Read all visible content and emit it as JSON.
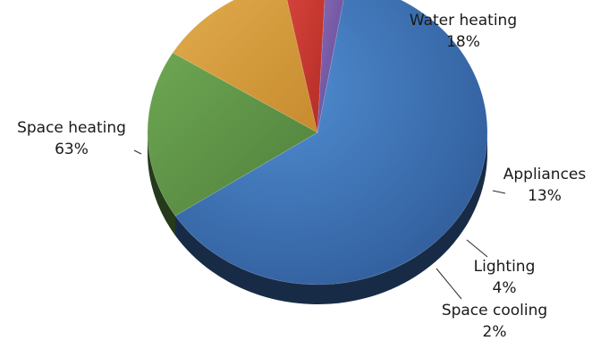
{
  "chart_data": {
    "type": "pie",
    "slices": [
      {
        "label": "Space heating",
        "value": 63,
        "value_text": "63%",
        "color": "#3d6fb4"
      },
      {
        "label": "Water heating",
        "value": 18,
        "value_text": "18%",
        "color": "#5f9346"
      },
      {
        "label": "Appliances",
        "value": 13,
        "value_text": "13%",
        "color": "#d49a3a"
      },
      {
        "label": "Lighting",
        "value": 4,
        "value_text": "4%",
        "color": "#c7352e"
      },
      {
        "label": "Space cooling",
        "value": 2,
        "value_text": "2%",
        "color": "#7a5aa6"
      }
    ]
  }
}
